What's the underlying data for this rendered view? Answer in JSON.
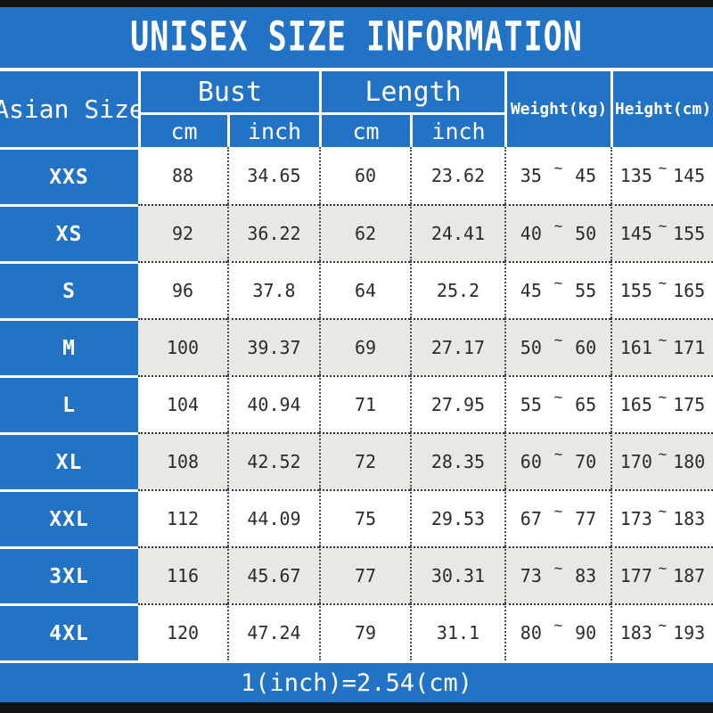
{
  "colors": {
    "header_blue": "#2272c5",
    "row_alt_gray": "#e9e8e5",
    "bar_black": "#141414",
    "text_dark": "#2b2b2b",
    "white": "#ffffff"
  },
  "chart_data": {
    "type": "table",
    "title": "UNISEX SIZE INFORMATION",
    "row_header_label": "Asian Size",
    "column_groups": [
      {
        "label": "Bust",
        "sub": [
          "cm",
          "inch"
        ]
      },
      {
        "label": "Length",
        "sub": [
          "cm",
          "inch"
        ]
      }
    ],
    "range_columns": [
      "Weight(kg)",
      "Height(cm)"
    ],
    "range_separator": "~",
    "rows": [
      {
        "size": "XXS",
        "bust_cm": "88",
        "bust_inch": "34.65",
        "length_cm": "60",
        "length_inch": "23.62",
        "weight": {
          "min": "35",
          "max": "45"
        },
        "height": {
          "min": "135",
          "max": "145"
        }
      },
      {
        "size": "XS",
        "bust_cm": "92",
        "bust_inch": "36.22",
        "length_cm": "62",
        "length_inch": "24.41",
        "weight": {
          "min": "40",
          "max": "50"
        },
        "height": {
          "min": "145",
          "max": "155"
        }
      },
      {
        "size": "S",
        "bust_cm": "96",
        "bust_inch": "37.8",
        "length_cm": "64",
        "length_inch": "25.2",
        "weight": {
          "min": "45",
          "max": "55"
        },
        "height": {
          "min": "155",
          "max": "165"
        }
      },
      {
        "size": "M",
        "bust_cm": "100",
        "bust_inch": "39.37",
        "length_cm": "69",
        "length_inch": "27.17",
        "weight": {
          "min": "50",
          "max": "60"
        },
        "height": {
          "min": "161",
          "max": "171"
        }
      },
      {
        "size": "L",
        "bust_cm": "104",
        "bust_inch": "40.94",
        "length_cm": "71",
        "length_inch": "27.95",
        "weight": {
          "min": "55",
          "max": "65"
        },
        "height": {
          "min": "165",
          "max": "175"
        }
      },
      {
        "size": "XL",
        "bust_cm": "108",
        "bust_inch": "42.52",
        "length_cm": "72",
        "length_inch": "28.35",
        "weight": {
          "min": "60",
          "max": "70"
        },
        "height": {
          "min": "170",
          "max": "180"
        }
      },
      {
        "size": "XXL",
        "bust_cm": "112",
        "bust_inch": "44.09",
        "length_cm": "75",
        "length_inch": "29.53",
        "weight": {
          "min": "67",
          "max": "77"
        },
        "height": {
          "min": "173",
          "max": "183"
        }
      },
      {
        "size": "3XL",
        "bust_cm": "116",
        "bust_inch": "45.67",
        "length_cm": "77",
        "length_inch": "30.31",
        "weight": {
          "min": "73",
          "max": "83"
        },
        "height": {
          "min": "177",
          "max": "187"
        }
      },
      {
        "size": "4XL",
        "bust_cm": "120",
        "bust_inch": "47.24",
        "length_cm": "79",
        "length_inch": "31.1",
        "weight": {
          "min": "80",
          "max": "90"
        },
        "height": {
          "min": "183",
          "max": "193"
        }
      }
    ],
    "note": "1(inch)=2.54(cm)"
  }
}
